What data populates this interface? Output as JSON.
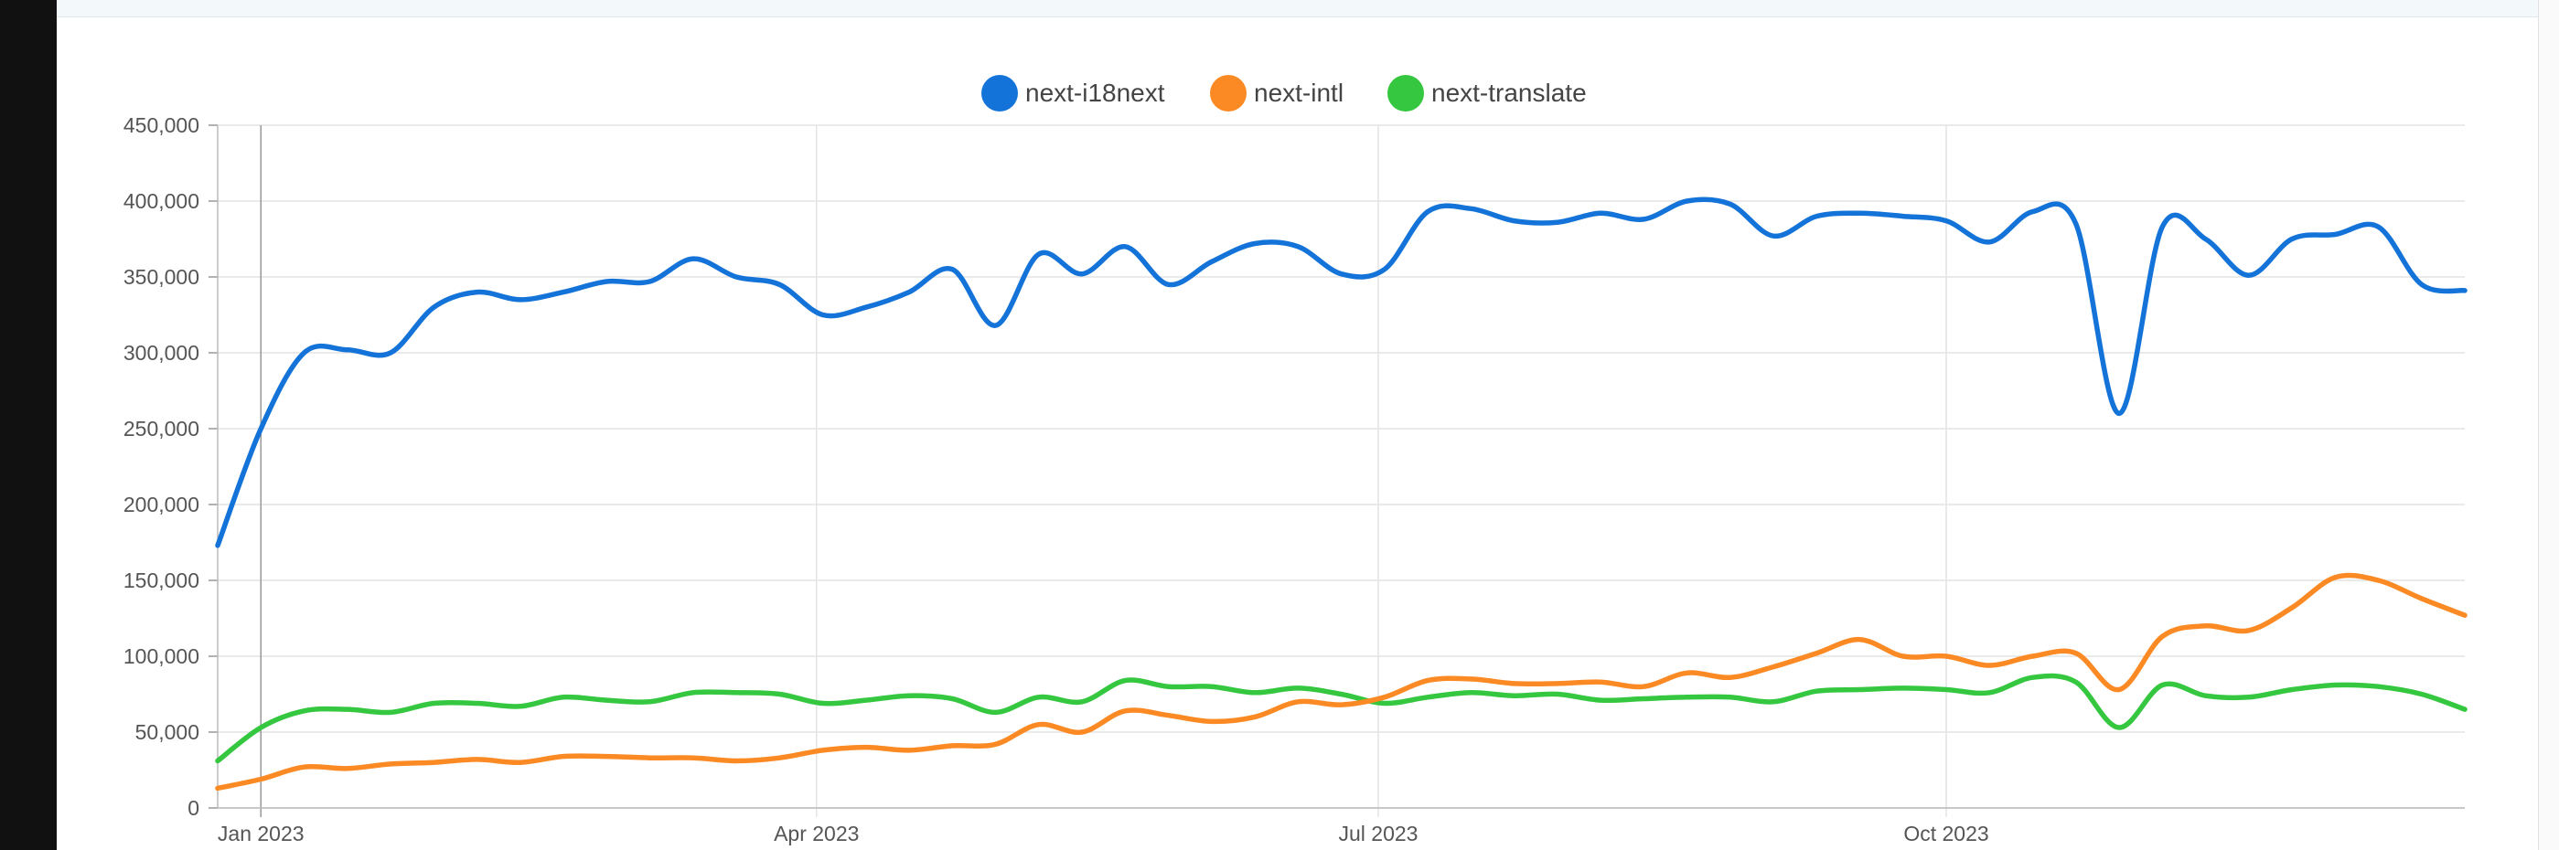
{
  "chart_data": {
    "type": "line",
    "title": "",
    "xlabel": "",
    "ylabel": "",
    "ylim": [
      0,
      450000
    ],
    "y_ticks": [
      "0",
      "50,000",
      "100,000",
      "150,000",
      "200,000",
      "250,000",
      "300,000",
      "350,000",
      "400,000",
      "450,000"
    ],
    "x_ticks": [
      {
        "label": "Jan 2023",
        "date": "2023-01-01"
      },
      {
        "label": "Apr 2023",
        "date": "2023-04-01"
      },
      {
        "label": "Jul 2023",
        "date": "2023-07-01"
      },
      {
        "label": "Oct 2023",
        "date": "2023-10-01"
      }
    ],
    "x_range": [
      "2022-12-25",
      "2023-12-24"
    ],
    "grid": true,
    "legend_position": "top-center",
    "x": [
      "2022-12-25",
      "2023-01-01",
      "2023-01-08",
      "2023-01-15",
      "2023-01-22",
      "2023-01-29",
      "2023-02-05",
      "2023-02-12",
      "2023-02-19",
      "2023-02-26",
      "2023-03-05",
      "2023-03-12",
      "2023-03-19",
      "2023-03-26",
      "2023-04-02",
      "2023-04-09",
      "2023-04-16",
      "2023-04-23",
      "2023-04-30",
      "2023-05-07",
      "2023-05-14",
      "2023-05-21",
      "2023-05-28",
      "2023-06-04",
      "2023-06-11",
      "2023-06-18",
      "2023-06-25",
      "2023-07-02",
      "2023-07-09",
      "2023-07-16",
      "2023-07-23",
      "2023-07-30",
      "2023-08-06",
      "2023-08-13",
      "2023-08-20",
      "2023-08-27",
      "2023-09-03",
      "2023-09-10",
      "2023-09-17",
      "2023-09-24",
      "2023-10-01",
      "2023-10-08",
      "2023-10-15",
      "2023-10-22",
      "2023-10-29",
      "2023-11-05",
      "2023-11-12",
      "2023-11-19",
      "2023-11-26",
      "2023-12-03",
      "2023-12-10",
      "2023-12-17",
      "2023-12-24"
    ],
    "series": [
      {
        "name": "next-i18next",
        "color": "#1473d8",
        "values": [
          173000,
          250000,
          300000,
          302000,
          300000,
          330000,
          340000,
          335000,
          340000,
          347000,
          347000,
          362000,
          350000,
          345000,
          325000,
          330000,
          340000,
          355000,
          318000,
          365000,
          352000,
          370000,
          345000,
          360000,
          372000,
          370000,
          352000,
          355000,
          393000,
          395000,
          387000,
          386000,
          392000,
          388000,
          400000,
          398000,
          377000,
          390000,
          392000,
          390000,
          387000,
          373000,
          393000,
          385000,
          260000,
          383000,
          375000,
          351000,
          375000,
          378000,
          383000,
          345000,
          341000
        ]
      },
      {
        "name": "next-intl",
        "color": "#fb8a24",
        "values": [
          13000,
          19000,
          27000,
          26000,
          29000,
          30000,
          32000,
          30000,
          34000,
          34000,
          33000,
          33000,
          31000,
          33000,
          38000,
          40000,
          38000,
          41000,
          42000,
          55000,
          50000,
          64000,
          61000,
          57000,
          60000,
          70000,
          68000,
          73000,
          84000,
          85000,
          82000,
          82000,
          83000,
          80000,
          89000,
          86000,
          93000,
          102000,
          111000,
          100000,
          100000,
          94000,
          100000,
          102000,
          78000,
          113000,
          120000,
          117000,
          132000,
          152000,
          150000,
          138000,
          127000
        ]
      },
      {
        "name": "next-translate",
        "color": "#34c73f",
        "values": [
          31000,
          53000,
          64000,
          65000,
          63000,
          69000,
          69000,
          67000,
          73000,
          71000,
          70000,
          76000,
          76000,
          75000,
          69000,
          71000,
          74000,
          72000,
          63000,
          73000,
          70000,
          84000,
          80000,
          80000,
          76000,
          79000,
          75000,
          69000,
          73000,
          76000,
          74000,
          75000,
          71000,
          72000,
          73000,
          73000,
          70000,
          77000,
          78000,
          79000,
          78000,
          76000,
          86000,
          83000,
          53000,
          81000,
          74000,
          73000,
          78000,
          81000,
          80000,
          75000,
          65000
        ]
      }
    ]
  }
}
